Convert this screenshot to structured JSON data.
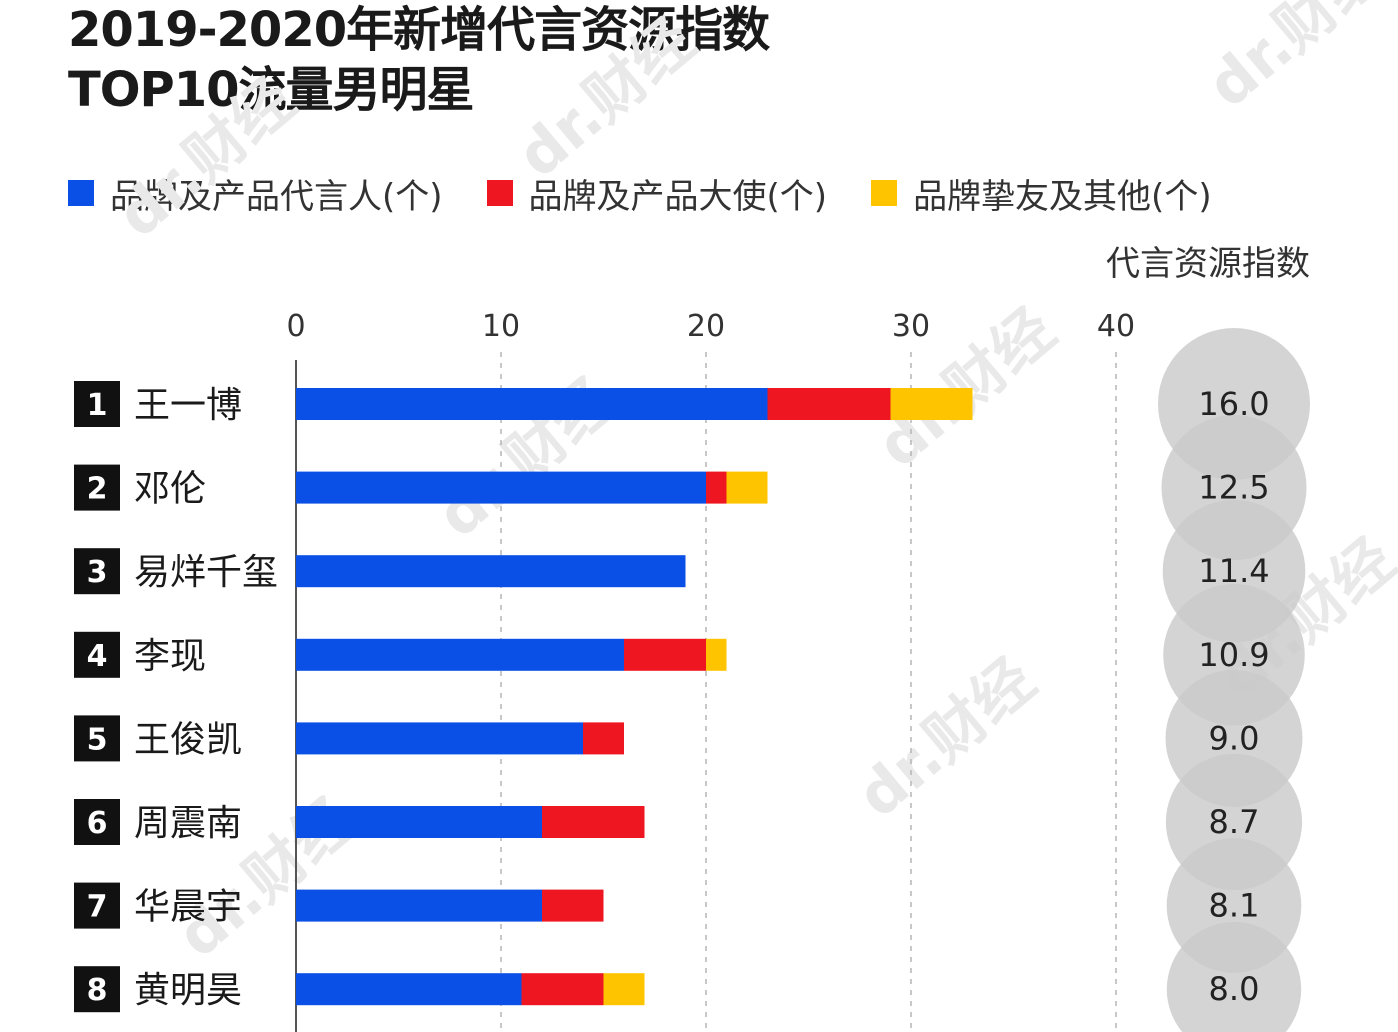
{
  "title": {
    "line1": "2019-2020年新增代言资源指数",
    "line2": "TOP10流量男明星"
  },
  "watermark_text": "dr.财经",
  "chart_data": {
    "type": "bar",
    "orientation": "horizontal",
    "stacked": true,
    "title": "2019-2020年新增代言资源指数 TOP10流量男明星",
    "xlim": [
      0,
      40
    ],
    "x_ticks": [
      0,
      10,
      20,
      30,
      40
    ],
    "grid": "vertical dashed",
    "legend": "top",
    "index_column_label": "代言资源指数",
    "categories": [
      "王一博",
      "邓伦",
      "易烊千玺",
      "李现",
      "王俊凯",
      "周震南",
      "华晨宇",
      "黄明昊"
    ],
    "ranks": [
      "1",
      "2",
      "3",
      "4",
      "5",
      "6",
      "7",
      "8"
    ],
    "series": [
      {
        "name": "品牌及产品代言人(个)",
        "color": "#0a50e6",
        "values": [
          23,
          20,
          19,
          16,
          14,
          12,
          12,
          11
        ]
      },
      {
        "name": "品牌及产品大使(个)",
        "color": "#ee1620",
        "values": [
          6,
          1,
          0,
          4,
          2,
          5,
          3,
          4
        ]
      },
      {
        "name": "品牌挚友及其他(个)",
        "color": "#ffc400",
        "values": [
          4,
          2,
          0,
          1,
          0,
          0,
          0,
          2
        ]
      }
    ],
    "index_values": [
      "16.0",
      "12.5",
      "11.4",
      "10.9",
      "9.0",
      "8.7",
      "8.1",
      "8.0"
    ]
  }
}
